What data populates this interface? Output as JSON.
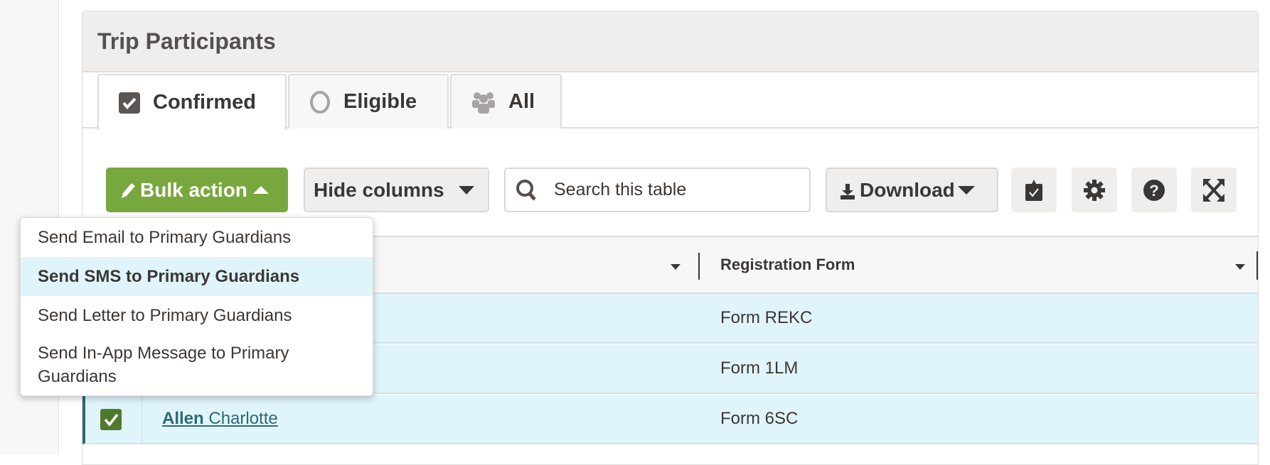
{
  "panel": {
    "title": "Trip Participants"
  },
  "tabs": [
    {
      "label": "Confirmed",
      "icon": "checkbox-checked-icon",
      "active": true
    },
    {
      "label": "Eligible",
      "icon": "circle-outline-icon",
      "active": false
    },
    {
      "label": "All",
      "icon": "users-icon",
      "active": false
    }
  ],
  "toolbar": {
    "bulk_action": "Bulk action",
    "hide_columns": "Hide columns",
    "search_placeholder": "Search this table",
    "download": "Download",
    "icons": [
      "checklist-icon",
      "gear-icon",
      "help-icon",
      "expand-icon"
    ]
  },
  "colors": {
    "accent_green": "#78a83d",
    "selected_row": "#e0f5fb",
    "link": "#2c6a76"
  },
  "table": {
    "columns": [
      "",
      "Registration Form"
    ],
    "rows": [
      {
        "name_last": "",
        "name_first": "",
        "form": "Form REKC"
      },
      {
        "name_last": "",
        "name_first": "",
        "form": "Form 1LM"
      },
      {
        "name_last": "Allen",
        "name_first": "Charlotte",
        "form": "Form 6SC",
        "checked": true
      }
    ]
  },
  "bulk_menu": {
    "items": [
      "Send Email to Primary Guardians",
      "Send SMS to Primary Guardians",
      "Send Letter to Primary Guardians",
      "Send In-App Message to Primary Guardians"
    ],
    "highlighted_index": 1
  }
}
